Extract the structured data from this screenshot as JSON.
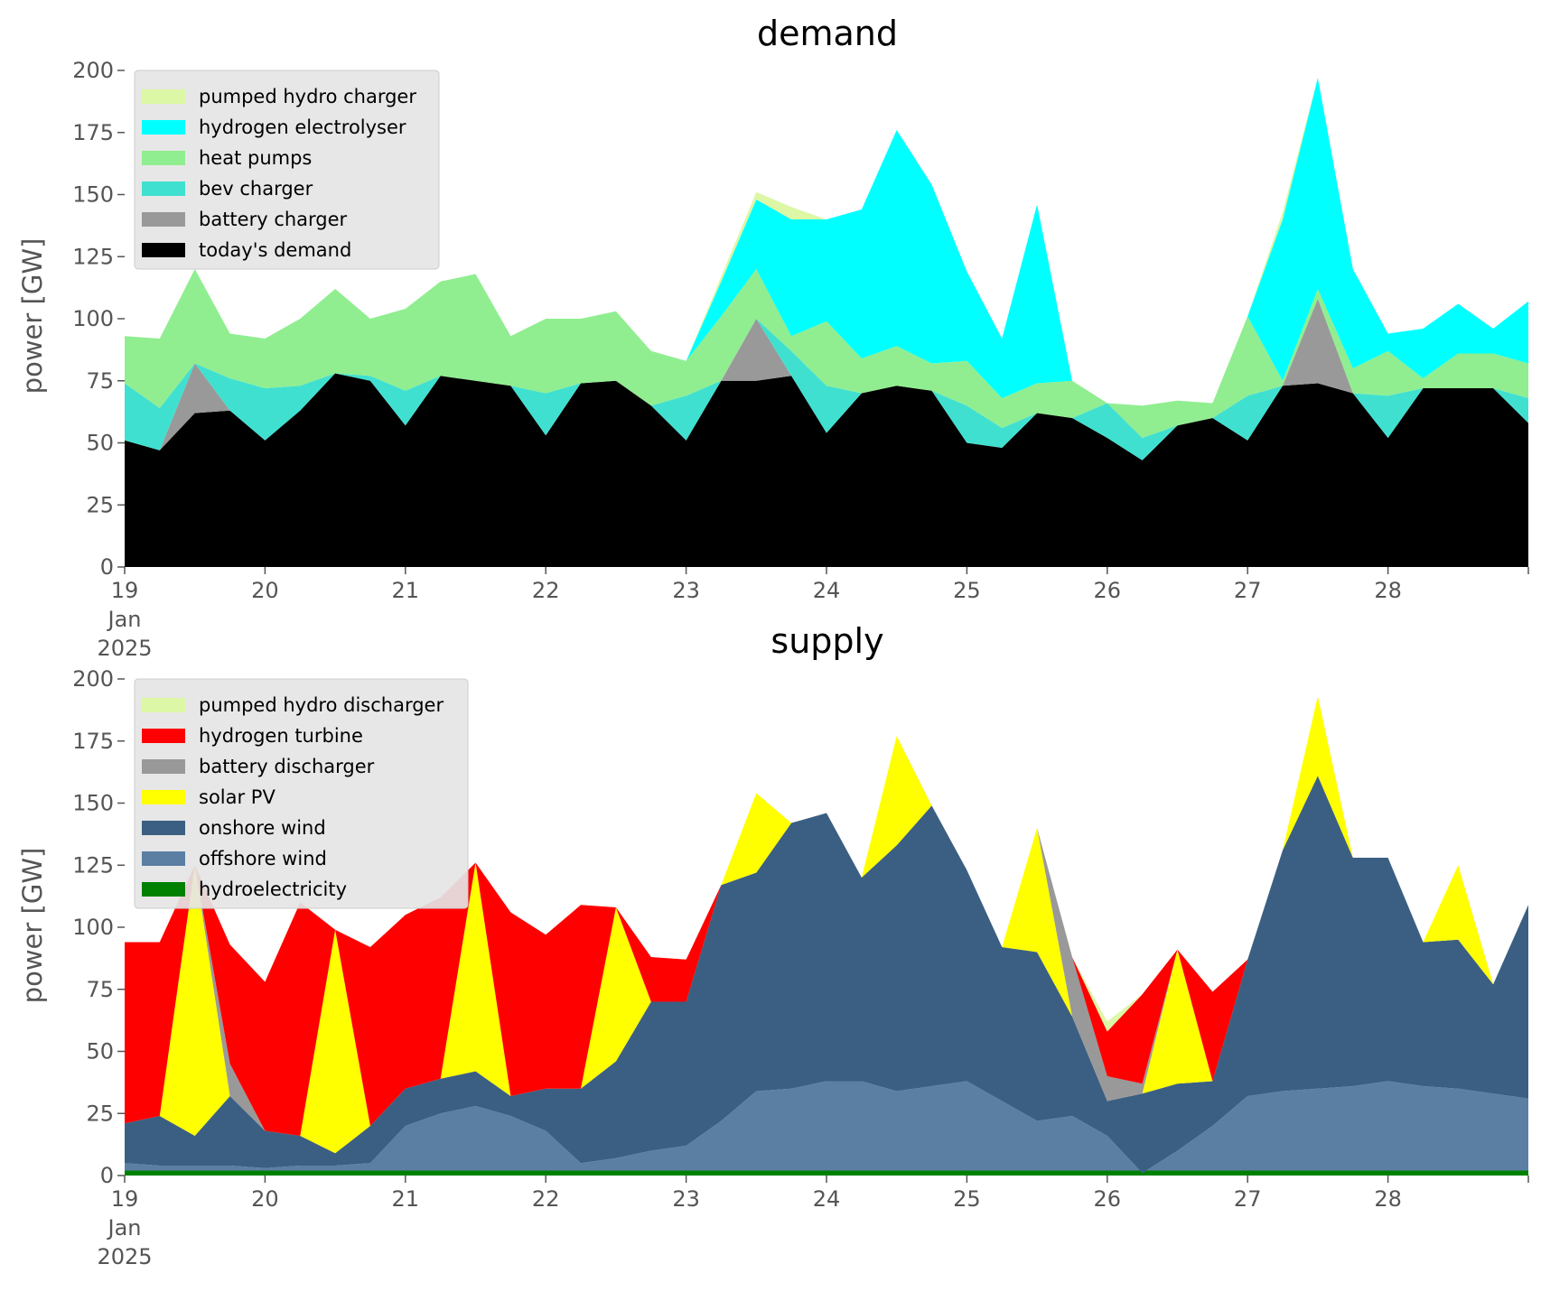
{
  "chart_data": [
    {
      "type": "area",
      "stacked": true,
      "title": "demand",
      "ylabel": "power [GW]",
      "xlabel": "",
      "ylim": [
        0,
        200
      ],
      "y_ticks": [
        0,
        25,
        50,
        75,
        100,
        125,
        150,
        175,
        200
      ],
      "x_range_days": [
        19,
        29
      ],
      "x_tick_labels": [
        "19",
        "20",
        "21",
        "22",
        "23",
        "24",
        "25",
        "26",
        "27",
        "28"
      ],
      "x_tick_sublabels": [
        "Jan",
        "2025"
      ],
      "grid": false,
      "legend": "top-left",
      "x": [
        19.0,
        19.25,
        19.5,
        19.75,
        20.0,
        20.25,
        20.5,
        20.75,
        21.0,
        21.25,
        21.5,
        21.75,
        22.0,
        22.25,
        22.5,
        22.75,
        23.0,
        23.25,
        23.5,
        23.75,
        24.0,
        24.25,
        24.5,
        24.75,
        25.0,
        25.25,
        25.5,
        25.75,
        26.0,
        26.25,
        26.5,
        26.75,
        27.0,
        27.25,
        27.5,
        27.75,
        28.0,
        28.25,
        28.5,
        28.75,
        29.0
      ],
      "series": [
        {
          "name": "today's demand",
          "color": "#000000",
          "values": [
            51,
            47,
            62,
            63,
            51,
            63,
            78,
            75,
            57,
            77,
            75,
            73,
            53,
            74,
            75,
            65,
            51,
            75,
            75,
            77,
            54,
            70,
            73,
            71,
            50,
            48,
            62,
            60,
            52,
            43,
            57,
            60,
            51,
            73,
            74,
            70,
            52,
            72,
            72,
            72,
            58
          ]
        },
        {
          "name": "battery charger",
          "color": "#999999",
          "values": [
            0,
            0,
            20,
            0,
            0,
            0,
            0,
            0,
            0,
            0,
            0,
            0,
            0,
            0,
            0,
            0,
            0,
            0,
            25,
            0,
            0,
            0,
            0,
            0,
            0,
            0,
            0,
            0,
            0,
            0,
            0,
            0,
            0,
            0,
            34,
            0,
            0,
            0,
            0,
            0,
            0
          ]
        },
        {
          "name": "bev charger",
          "color": "#40e0d0",
          "values": [
            23,
            17,
            0,
            13,
            21,
            10,
            0,
            2,
            14,
            0,
            0,
            0,
            17,
            0,
            0,
            0,
            18,
            0,
            0,
            10,
            19,
            0,
            0,
            0,
            15,
            8,
            0,
            0,
            14,
            9,
            0,
            0,
            18,
            0,
            0,
            0,
            17,
            0,
            0,
            0,
            10
          ]
        },
        {
          "name": "heat pumps",
          "color": "#90ee90",
          "values": [
            19,
            28,
            38,
            18,
            20,
            27,
            34,
            23,
            33,
            38,
            43,
            20,
            30,
            26,
            28,
            22,
            14,
            26,
            20,
            6,
            26,
            14,
            16,
            11,
            18,
            12,
            12,
            15,
            0,
            13,
            10,
            6,
            32,
            2,
            4,
            10,
            18,
            4,
            14,
            14,
            14
          ]
        },
        {
          "name": "hydrogen electrolyser",
          "color": "#00ffff",
          "values": [
            0,
            0,
            0,
            0,
            0,
            0,
            0,
            0,
            0,
            0,
            0,
            0,
            0,
            0,
            0,
            0,
            0,
            14,
            28,
            47,
            41,
            60,
            87,
            72,
            36,
            24,
            72,
            0,
            0,
            0,
            0,
            0,
            0,
            65,
            85,
            40,
            7,
            20,
            20,
            10,
            25
          ]
        },
        {
          "name": "pumped hydro charger",
          "color": "#dcf7a5",
          "values": [
            0,
            0,
            0,
            0,
            0,
            0,
            0,
            0,
            0,
            0,
            0,
            0,
            0,
            0,
            0,
            0,
            0,
            2,
            3,
            5,
            0,
            0,
            0,
            0,
            0,
            0,
            0,
            0,
            0,
            0,
            0,
            0,
            0,
            3,
            0,
            0,
            0,
            0,
            0,
            0,
            0
          ]
        }
      ],
      "legend_order": [
        "pumped hydro charger",
        "hydrogen electrolyser",
        "heat pumps",
        "bev charger",
        "battery charger",
        "today's demand"
      ]
    },
    {
      "type": "area",
      "stacked": true,
      "title": "supply",
      "ylabel": "power [GW]",
      "xlabel": "",
      "ylim": [
        0,
        200
      ],
      "y_ticks": [
        0,
        25,
        50,
        75,
        100,
        125,
        150,
        175,
        200
      ],
      "x_range_days": [
        19,
        29
      ],
      "x_tick_labels": [
        "19",
        "20",
        "21",
        "22",
        "23",
        "24",
        "25",
        "26",
        "27",
        "28"
      ],
      "x_tick_sublabels": [
        "Jan",
        "2025"
      ],
      "grid": false,
      "legend": "top-left",
      "x": [
        19.0,
        19.25,
        19.5,
        19.75,
        20.0,
        20.25,
        20.5,
        20.75,
        21.0,
        21.25,
        21.5,
        21.75,
        22.0,
        22.25,
        22.5,
        22.75,
        23.0,
        23.25,
        23.5,
        23.75,
        24.0,
        24.25,
        24.5,
        24.75,
        25.0,
        25.25,
        25.5,
        25.75,
        26.0,
        26.25,
        26.5,
        26.75,
        27.0,
        27.25,
        27.5,
        27.75,
        28.0,
        28.25,
        28.5,
        28.75,
        29.0
      ],
      "series": [
        {
          "name": "hydroelectricity",
          "color": "#008000",
          "values": [
            2,
            2,
            2,
            2,
            2,
            2,
            2,
            2,
            2,
            2,
            2,
            2,
            2,
            2,
            2,
            2,
            2,
            2,
            2,
            2,
            2,
            2,
            2,
            2,
            2,
            2,
            2,
            2,
            2,
            2,
            2,
            2,
            2,
            2,
            2,
            2,
            2,
            2,
            2,
            2,
            2
          ]
        },
        {
          "name": "offshore wind",
          "color": "#5b7fa3",
          "values": [
            3,
            2,
            2,
            2,
            1,
            2,
            2,
            3,
            18,
            23,
            26,
            22,
            16,
            3,
            5,
            8,
            10,
            20,
            32,
            33,
            36,
            36,
            32,
            34,
            36,
            28,
            20,
            22,
            14,
            -1,
            8,
            18,
            30,
            32,
            33,
            34,
            36,
            34,
            33,
            31,
            29
          ]
        },
        {
          "name": "onshore wind",
          "color": "#3b5f82",
          "values": [
            16,
            20,
            12,
            28,
            15,
            12,
            5,
            15,
            15,
            14,
            14,
            8,
            17,
            30,
            39,
            60,
            58,
            95,
            88,
            107,
            108,
            82,
            99,
            113,
            85,
            62,
            68,
            40,
            14,
            32,
            27,
            18,
            55,
            97,
            126,
            92,
            90,
            58,
            60,
            44,
            78
          ]
        },
        {
          "name": "solar PV",
          "color": "#ffff00",
          "values": [
            0,
            0,
            109,
            0,
            0,
            0,
            90,
            0,
            0,
            0,
            84,
            0,
            0,
            0,
            62,
            0,
            0,
            0,
            32,
            0,
            0,
            0,
            44,
            0,
            0,
            0,
            50,
            0,
            0,
            0,
            54,
            0,
            0,
            0,
            32,
            0,
            0,
            0,
            30,
            0,
            0
          ]
        },
        {
          "name": "battery discharger",
          "color": "#999999",
          "values": [
            0,
            0,
            0,
            13,
            0,
            0,
            0,
            0,
            0,
            0,
            0,
            0,
            0,
            0,
            0,
            0,
            0,
            0,
            0,
            0,
            0,
            0,
            0,
            0,
            0,
            0,
            0,
            24,
            10,
            4,
            0,
            0,
            0,
            0,
            0,
            0,
            0,
            0,
            0,
            0,
            0
          ]
        },
        {
          "name": "hydrogen turbine",
          "color": "#ff0000",
          "values": [
            73,
            70,
            0,
            48,
            60,
            94,
            0,
            72,
            70,
            73,
            0,
            74,
            62,
            74,
            0,
            18,
            17,
            0,
            0,
            0,
            0,
            0,
            0,
            0,
            0,
            0,
            0,
            0,
            18,
            36,
            0,
            36,
            0,
            0,
            0,
            0,
            0,
            0,
            0,
            0,
            0
          ]
        },
        {
          "name": "pumped hydro discharger",
          "color": "#dcf7a5",
          "values": [
            0,
            0,
            0,
            0,
            0,
            0,
            0,
            0,
            0,
            0,
            0,
            0,
            0,
            0,
            0,
            0,
            0,
            0,
            0,
            0,
            0,
            0,
            0,
            0,
            0,
            0,
            0,
            0,
            4,
            0,
            0,
            0,
            0,
            0,
            0,
            0,
            0,
            0,
            0,
            0,
            0
          ]
        }
      ],
      "legend_order": [
        "pumped hydro discharger",
        "hydrogen turbine",
        "battery discharger",
        "solar PV",
        "onshore wind",
        "offshore wind",
        "hydroelectricity"
      ]
    }
  ]
}
